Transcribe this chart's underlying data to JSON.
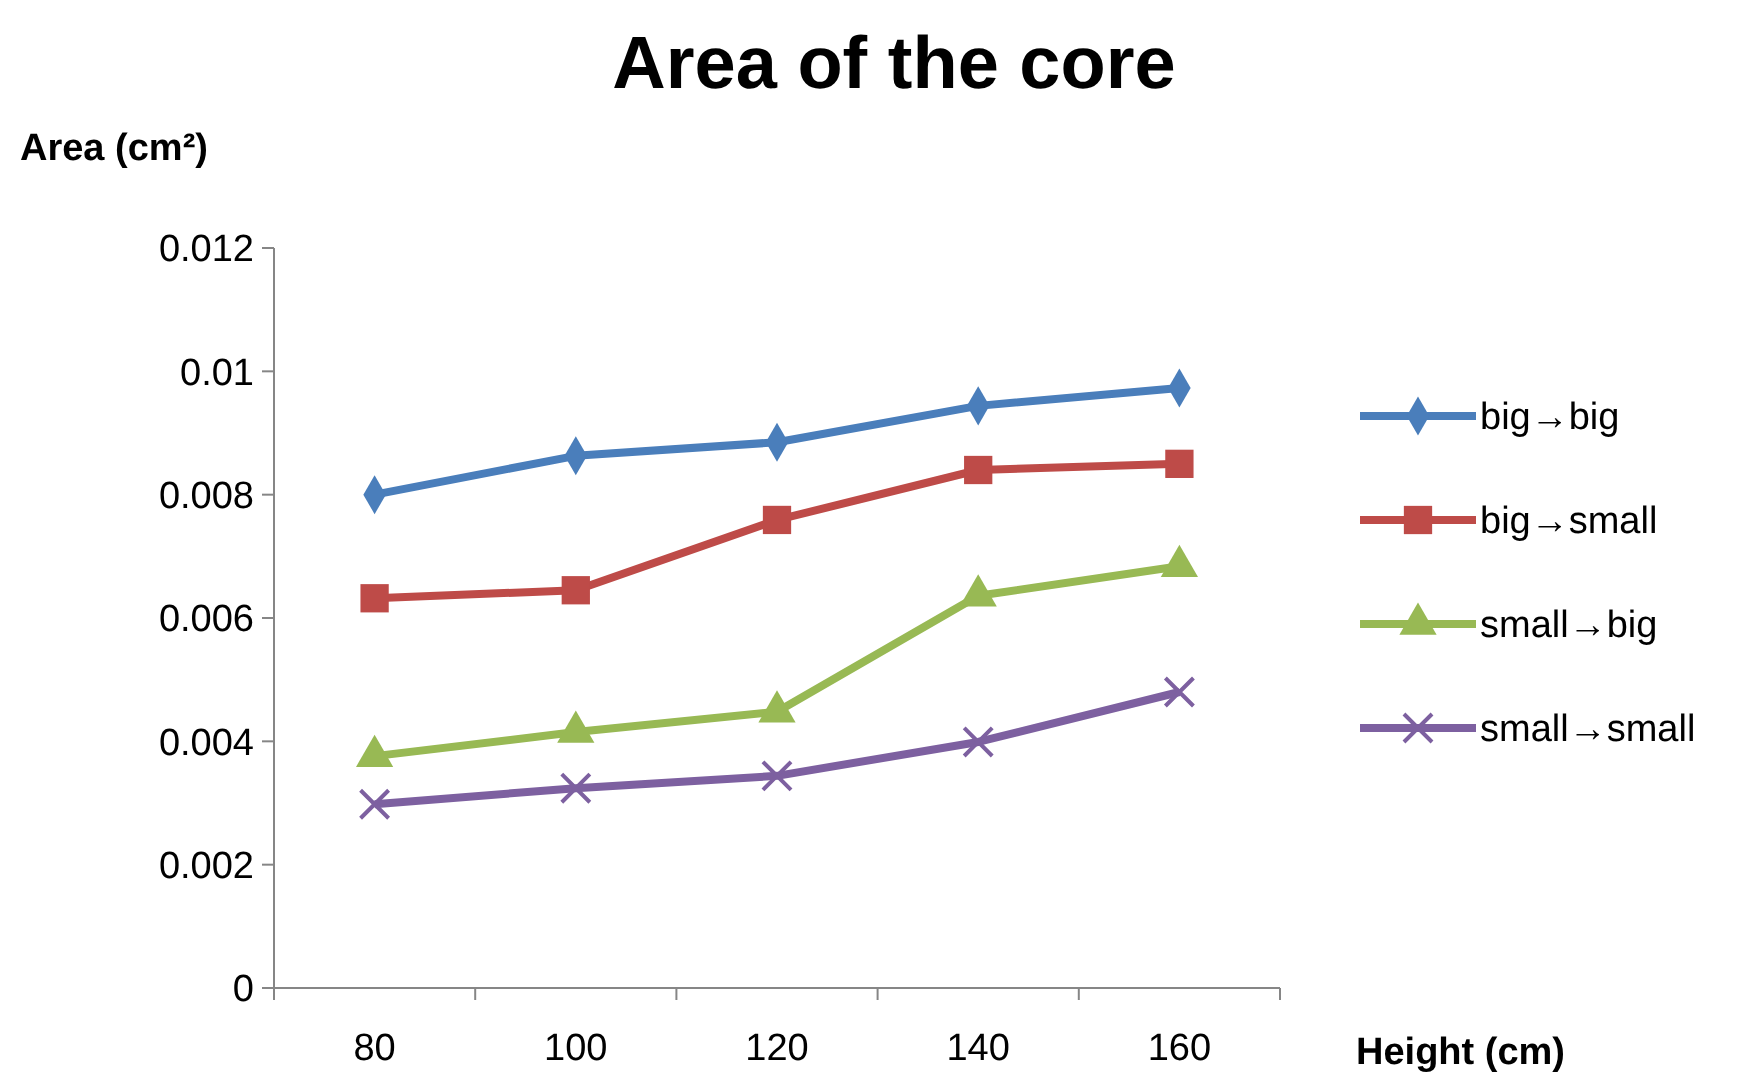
{
  "chart_data": {
    "type": "line",
    "title": "Area of the core",
    "xlabel": "Height (cm)",
    "ylabel": "Area (cm²)",
    "categories": [
      "80",
      "100",
      "120",
      "140",
      "160"
    ],
    "ylim": [
      0,
      0.012
    ],
    "yticks": [
      0,
      0.002,
      0.004,
      0.006,
      0.008,
      {
        "value": 0.01,
        "label": "0.01"
      },
      0.012
    ],
    "grid": false,
    "legend": "right",
    "line_style": "solid",
    "series": [
      {
        "name": "big→big",
        "color": "#4a7ebb",
        "marker": "diamond",
        "values": [
          0.008,
          0.00863,
          0.00885,
          0.00944,
          0.00973
        ]
      },
      {
        "name": "big→small",
        "color": "#be4b48",
        "marker": "square",
        "values": [
          0.00632,
          0.00645,
          0.00759,
          0.0084,
          0.0085
        ]
      },
      {
        "name": "small→big",
        "color": "#98b954",
        "marker": "triangle",
        "values": [
          0.00376,
          0.00415,
          0.00448,
          0.00636,
          0.00684
        ]
      },
      {
        "name": "small→small",
        "color": "#7d60a0",
        "marker": "cross",
        "values": [
          0.00298,
          0.00324,
          0.00344,
          0.00399,
          0.0048
        ]
      }
    ]
  }
}
